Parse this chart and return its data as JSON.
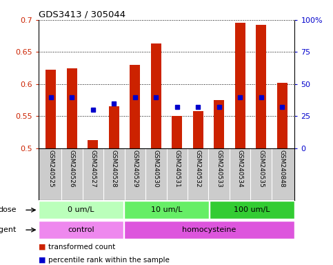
{
  "title": "GDS3413 / 305044",
  "samples": [
    "GSM240525",
    "GSM240526",
    "GSM240527",
    "GSM240528",
    "GSM240529",
    "GSM240530",
    "GSM240531",
    "GSM240532",
    "GSM240533",
    "GSM240534",
    "GSM240535",
    "GSM240848"
  ],
  "transformed_count": [
    0.623,
    0.625,
    0.513,
    0.566,
    0.63,
    0.663,
    0.55,
    0.558,
    0.575,
    0.695,
    0.692,
    0.602
  ],
  "percentile_rank_pct": [
    40,
    40,
    30,
    35,
    40,
    40,
    32,
    32,
    32,
    40,
    40,
    32
  ],
  "ymin": 0.5,
  "ymax": 0.7,
  "y_ticks_left": [
    0.5,
    0.55,
    0.6,
    0.65,
    0.7
  ],
  "y_ticks_right_vals": [
    0,
    25,
    50,
    75,
    100
  ],
  "bar_color": "#CC2200",
  "dot_color": "#0000CC",
  "dose_groups": [
    {
      "label": "0 um/L",
      "start": 0,
      "end": 4,
      "color": "#BBFFBB"
    },
    {
      "label": "10 um/L",
      "start": 4,
      "end": 8,
      "color": "#66EE66"
    },
    {
      "label": "100 um/L",
      "start": 8,
      "end": 12,
      "color": "#33CC33"
    }
  ],
  "agent_groups": [
    {
      "label": "control",
      "start": 0,
      "end": 4,
      "color": "#EE88EE"
    },
    {
      "label": "homocysteine",
      "start": 4,
      "end": 12,
      "color": "#DD55DD"
    }
  ],
  "legend_items": [
    {
      "label": "transformed count",
      "color": "#CC2200"
    },
    {
      "label": "percentile rank within the sample",
      "color": "#0000CC"
    }
  ],
  "dose_label": "dose",
  "agent_label": "agent",
  "left_axis_color": "#CC2200",
  "right_axis_color": "#0000CC",
  "background_color": "#FFFFFF",
  "sample_bg_color": "#CCCCCC"
}
